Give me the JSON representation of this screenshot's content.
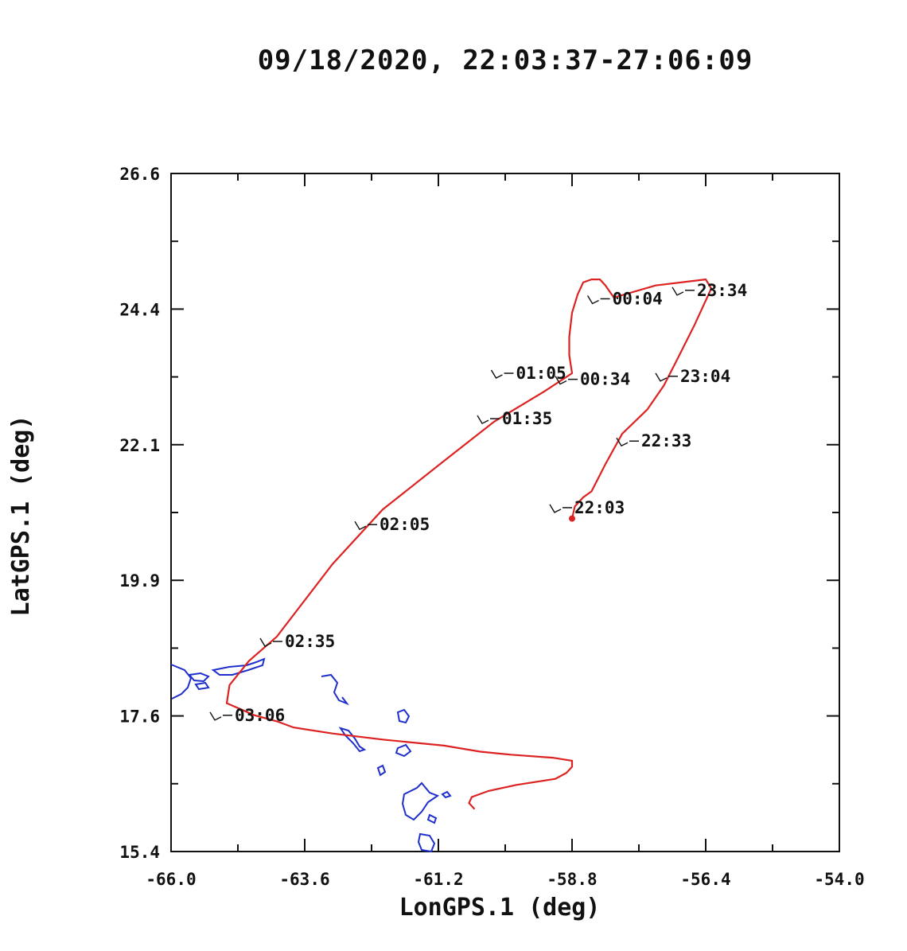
{
  "chart_data": {
    "type": "line",
    "title": "09/18/2020, 22:03:37-27:06:09",
    "xlabel": "LonGPS.1 (deg)",
    "ylabel": "LatGPS.1 (deg)",
    "xlim": [
      -66.0,
      -54.0
    ],
    "ylim": [
      15.4,
      26.6
    ],
    "xticks": [
      "-66.0",
      "-63.6",
      "-61.2",
      "-58.8",
      "-56.4",
      "-54.0"
    ],
    "yticks": [
      "15.4",
      "17.6",
      "19.9",
      "22.1",
      "24.4",
      "26.6"
    ],
    "grid": false,
    "colors": {
      "track": "#dd2222",
      "coastline": "#1f2fcc",
      "axes": "#111111"
    },
    "series": [
      {
        "kind": "flight-track",
        "x": [
          -58.8,
          -58.75,
          -58.6,
          -58.45,
          -58.2,
          -57.9,
          -57.45,
          -57.15,
          -56.9,
          -56.6,
          -56.3,
          -56.4,
          -57.3,
          -58.05,
          -58.2,
          -58.3,
          -58.45,
          -58.6,
          -58.7,
          -58.8,
          -58.85,
          -58.85,
          -58.8,
          -59.3,
          -60.2,
          -61.1,
          -62.2,
          -63.1,
          -64.1,
          -64.6,
          -64.95,
          -65.0,
          -64.5,
          -64.1,
          -63.8,
          -63.1,
          -62.2,
          -61.1,
          -60.45,
          -59.9,
          -59.15,
          -58.8,
          -58.8,
          -58.9,
          -59.1,
          -59.8,
          -60.3,
          -60.6,
          -60.65,
          -60.55
        ],
        "y": [
          20.9,
          21.1,
          21.25,
          21.35,
          21.8,
          22.3,
          22.7,
          23.1,
          23.55,
          24.1,
          24.7,
          24.85,
          24.75,
          24.55,
          24.75,
          24.85,
          24.85,
          24.8,
          24.6,
          24.3,
          23.9,
          23.6,
          23.3,
          23.0,
          22.5,
          21.85,
          21.05,
          20.15,
          18.95,
          18.55,
          18.15,
          17.85,
          17.65,
          17.55,
          17.45,
          17.35,
          17.25,
          17.15,
          17.05,
          17.0,
          16.95,
          16.9,
          16.8,
          16.7,
          16.6,
          16.5,
          16.4,
          16.3,
          16.2,
          16.1
        ]
      }
    ],
    "annotations": [
      {
        "label": "22:03",
        "x": -58.8,
        "y": 21.08
      },
      {
        "label": "22:33",
        "x": -57.6,
        "y": 22.18
      },
      {
        "label": "23:04",
        "x": -56.9,
        "y": 23.25
      },
      {
        "label": "23:34",
        "x": -56.6,
        "y": 24.67
      },
      {
        "label": "00:04",
        "x": -58.12,
        "y": 24.53
      },
      {
        "label": "00:34",
        "x": -58.7,
        "y": 23.2
      },
      {
        "label": "01:05",
        "x": -59.85,
        "y": 23.3
      },
      {
        "label": "01:35",
        "x": -60.1,
        "y": 22.55
      },
      {
        "label": "02:05",
        "x": -62.3,
        "y": 20.8
      },
      {
        "label": "02:35",
        "x": -64.0,
        "y": 18.87
      },
      {
        "label": "03:06",
        "x": -64.9,
        "y": 17.65
      }
    ]
  }
}
